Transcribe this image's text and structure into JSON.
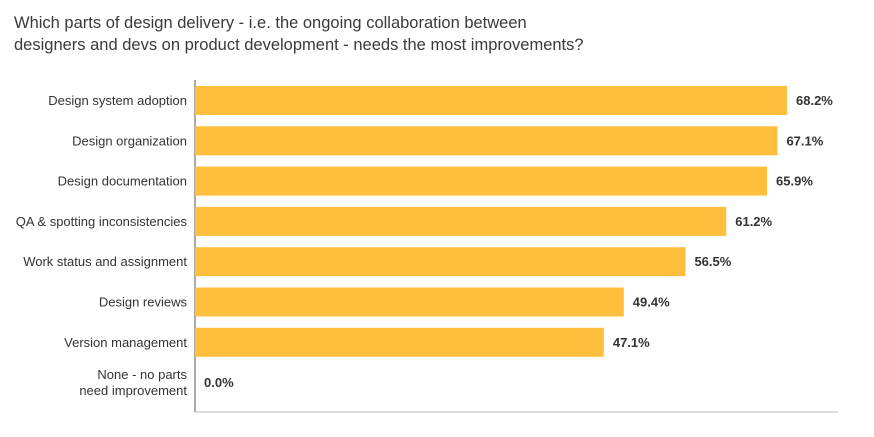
{
  "chart_data": {
    "type": "bar",
    "orientation": "horizontal",
    "title_lines": [
      "Which parts of design delivery - i.e. the ongoing collaboration between",
      "designers and devs on product development - needs the most improvements?"
    ],
    "categories": [
      [
        "Design system adoption"
      ],
      [
        "Design organization"
      ],
      [
        "Design documentation"
      ],
      [
        "QA & spotting inconsistencies"
      ],
      [
        "Work status and assignment"
      ],
      [
        "Design reviews"
      ],
      [
        "Version management"
      ],
      [
        "None - no parts",
        "need improvement"
      ]
    ],
    "values": [
      68.2,
      67.1,
      65.9,
      61.2,
      56.5,
      49.4,
      47.1,
      0.0
    ],
    "value_labels": [
      "68.2%",
      "67.1%",
      "65.9%",
      "61.2%",
      "56.5%",
      "49.4%",
      "47.1%",
      "0.0%"
    ],
    "xlim": [
      0,
      68.2
    ],
    "grid": false,
    "legend": "none",
    "bar_color": "#ffbe3c",
    "axis_color": "#555555"
  }
}
